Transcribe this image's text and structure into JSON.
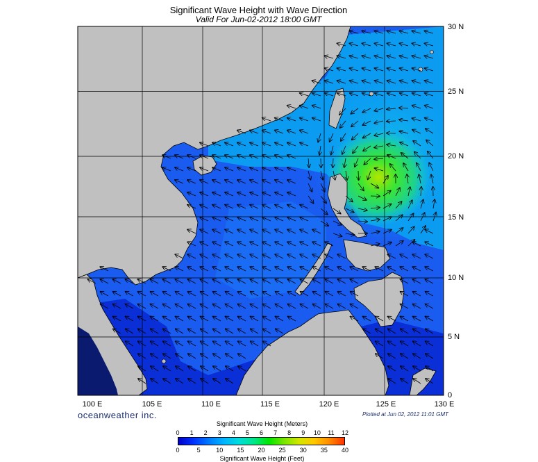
{
  "title": "Significant Wave Height with Wave Direction",
  "subtitle": "Valid For Jun-02-2012 18:00 GMT",
  "brand": "oceanweather inc.",
  "plotted": "Plotted at Jun 02, 2012 11:01 GMT",
  "lat_labels": [
    "30 N",
    "25 N",
    "20 N",
    "15 N",
    "10 N",
    "5 N",
    "0"
  ],
  "lon_labels": [
    "100 E",
    "105 E",
    "110 E",
    "115 E",
    "120 E",
    "125 E",
    "130 E"
  ],
  "legend": {
    "title_meters": "Significant Wave Height (Meters)",
    "title_feet": "Significant Wave Height (Feet)",
    "meters_ticks": [
      "0",
      "1",
      "2",
      "3",
      "4",
      "5",
      "6",
      "7",
      "8",
      "9",
      "10",
      "11",
      "12"
    ],
    "feet_ticks": [
      "0",
      "5",
      "10",
      "15",
      "20",
      "25",
      "30",
      "35",
      "40"
    ],
    "colors": [
      "#0000c8",
      "#0032ff",
      "#0078ff",
      "#00b4ff",
      "#00dcdc",
      "#00e68c",
      "#00e600",
      "#78e600",
      "#d2e600",
      "#ffc800",
      "#ff8c00",
      "#ff3200"
    ]
  },
  "colors": {
    "land": "#c0c0c0",
    "ocean_deep_blue": "#0a2fd6",
    "ocean_mid_blue": "#1a5cf0",
    "ocean_light_blue": "#0b9cf2",
    "ocean_cyan": "#14d2e6",
    "ocean_green": "#1ee66e",
    "grid": "#000000",
    "brand": "#1d2f6f"
  }
}
